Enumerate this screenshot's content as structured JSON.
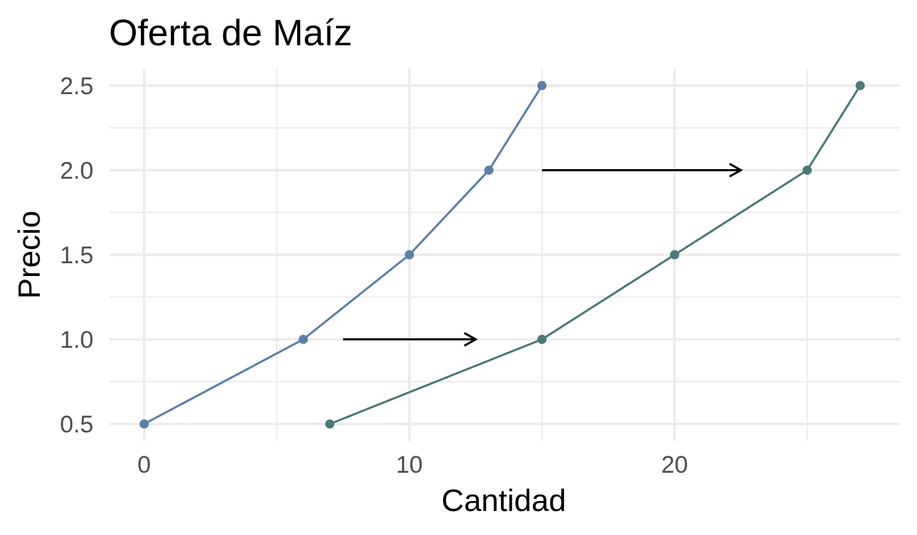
{
  "chart_data": {
    "type": "line",
    "title": "Oferta de Maíz",
    "xlabel": "Cantidad",
    "ylabel": "Precio",
    "xlim": [
      -1.3,
      28.5
    ],
    "ylim": [
      0.4,
      2.6
    ],
    "x_ticks": [
      0,
      10,
      20
    ],
    "x_tick_labels": [
      "0",
      "10",
      "20"
    ],
    "x_minor_ticks": [
      5,
      15,
      25
    ],
    "y_ticks": [
      0.5,
      1.0,
      1.5,
      2.0,
      2.5
    ],
    "y_tick_labels": [
      "0.5",
      "1.0",
      "1.5",
      "2.0",
      "2.5"
    ],
    "y_minor_ticks": [
      0.75,
      1.25,
      1.75,
      2.25
    ],
    "grid": true,
    "series": [
      {
        "color": "#5a7fab",
        "points": [
          {
            "x": 0,
            "y": 0.5
          },
          {
            "x": 6,
            "y": 1.0
          },
          {
            "x": 10,
            "y": 1.5
          },
          {
            "x": 13,
            "y": 2.0
          },
          {
            "x": 15,
            "y": 2.5
          }
        ]
      },
      {
        "color": "#4a7a78",
        "points": [
          {
            "x": 7,
            "y": 0.5
          },
          {
            "x": 15,
            "y": 1.0
          },
          {
            "x": 20,
            "y": 1.5
          },
          {
            "x": 25,
            "y": 2.0
          },
          {
            "x": 27,
            "y": 2.5
          }
        ]
      }
    ],
    "annotations": [
      {
        "type": "arrow",
        "x_start": 7.5,
        "x_end": 12.5,
        "y": 1.0,
        "color": "#000000"
      },
      {
        "type": "arrow",
        "x_start": 15,
        "x_end": 22.5,
        "y": 2.0,
        "color": "#000000"
      }
    ]
  }
}
